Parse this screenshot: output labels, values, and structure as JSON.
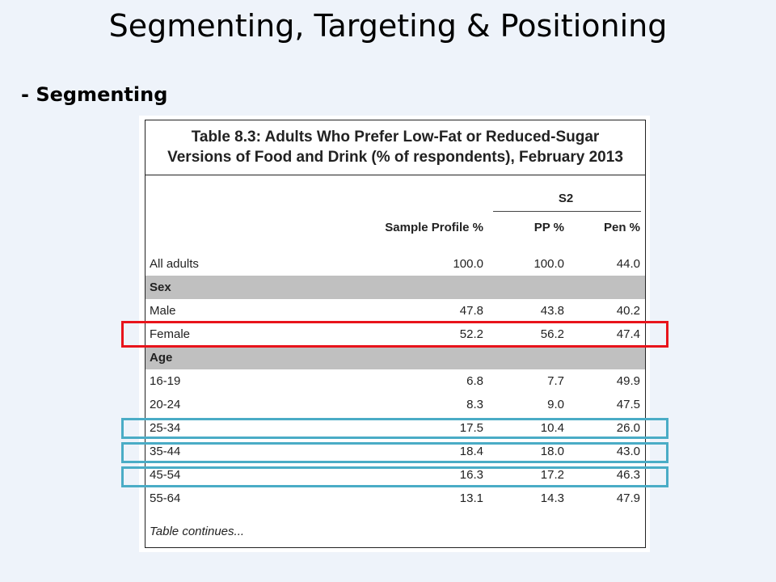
{
  "slide": {
    "title": "Segmenting, Targeting & Positioning",
    "subtitle": "- Segmenting"
  },
  "table": {
    "title_line1": "Table 8.3: Adults Who Prefer Low-Fat or Reduced-Sugar",
    "title_line2": "Versions of Food and Drink (% of respondents), February 2013",
    "group_header": "S2",
    "columns": [
      "Sample Profile %",
      "PP %",
      "Pen %"
    ],
    "rows": [
      {
        "label": "All adults",
        "values": [
          "100.0",
          "100.0",
          "44.0"
        ]
      },
      {
        "label": "Sex",
        "values": [
          "",
          "",
          ""
        ]
      },
      {
        "label": "Male",
        "values": [
          "47.8",
          "43.8",
          "40.2"
        ]
      },
      {
        "label": "Female",
        "values": [
          "52.2",
          "56.2",
          "47.4"
        ]
      },
      {
        "label": "Age",
        "values": [
          "",
          "",
          ""
        ]
      },
      {
        "label": "16-19",
        "values": [
          "6.8",
          "7.7",
          "49.9"
        ]
      },
      {
        "label": "20-24",
        "values": [
          "8.3",
          "9.0",
          "47.5"
        ]
      },
      {
        "label": "25-34",
        "values": [
          "17.5",
          "10.4",
          "26.0"
        ]
      },
      {
        "label": "35-44",
        "values": [
          "18.4",
          "18.0",
          "43.0"
        ]
      },
      {
        "label": "45-54",
        "values": [
          "16.3",
          "17.2",
          "46.3"
        ]
      },
      {
        "label": "55-64",
        "values": [
          "13.1",
          "14.3",
          "47.9"
        ]
      }
    ],
    "footer": "Table continues..."
  },
  "highlights": {
    "red_color": "#e8141b",
    "teal_color": "#4aacc6"
  }
}
